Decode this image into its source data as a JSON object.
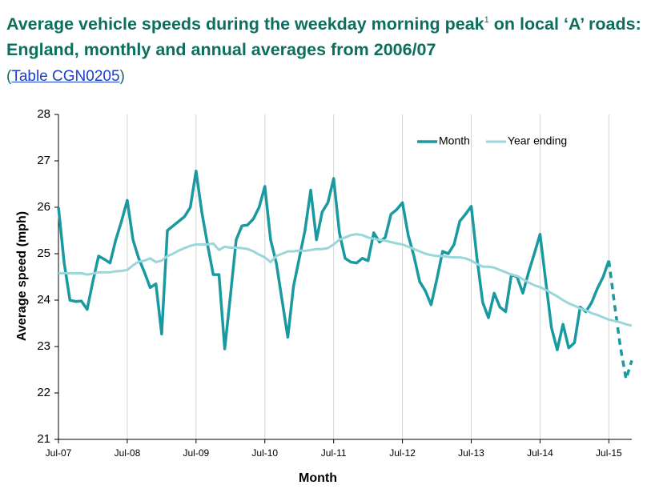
{
  "header": {
    "title": "Average vehicle speeds during the weekday morning peak",
    "title_sup": "1",
    "title_rest": " on local ‘A’ roads: England, monthly and annual averages from 2006/07",
    "link_open": "(",
    "link_text": "Table CGN0205",
    "link_close": ")"
  },
  "chart_data": {
    "type": "line",
    "x_label": "Month",
    "y_label": "Average speed (mph)",
    "categories": [
      "Jul-07",
      null,
      null,
      null,
      null,
      null,
      null,
      null,
      null,
      null,
      null,
      null,
      "Jul-08",
      null,
      null,
      null,
      null,
      null,
      null,
      null,
      null,
      null,
      null,
      null,
      "Jul-09",
      null,
      null,
      null,
      null,
      null,
      null,
      null,
      null,
      null,
      null,
      null,
      "Jul-10",
      null,
      null,
      null,
      null,
      null,
      null,
      null,
      null,
      null,
      null,
      null,
      "Jul-11",
      null,
      null,
      null,
      null,
      null,
      null,
      null,
      null,
      null,
      null,
      null,
      "Jul-12",
      null,
      null,
      null,
      null,
      null,
      null,
      null,
      null,
      null,
      null,
      null,
      "Jul-13",
      null,
      null,
      null,
      null,
      null,
      null,
      null,
      null,
      null,
      null,
      null,
      "Jul-14",
      null,
      null,
      null,
      null,
      null,
      null,
      null,
      null,
      null,
      null,
      null,
      "Jul-15",
      null,
      null,
      null,
      null
    ],
    "ylim": [
      21,
      28
    ],
    "yticks": [
      21,
      22,
      23,
      24,
      25,
      26,
      27,
      28
    ],
    "grid_x": true,
    "legend": "top-right",
    "series": [
      {
        "name": "Month",
        "color": "#1a9aa0",
        "width": 3.5,
        "dashed_from": 96,
        "values": [
          26.0,
          24.8,
          24.0,
          23.97,
          23.98,
          23.8,
          24.4,
          24.95,
          24.88,
          24.8,
          25.3,
          25.7,
          26.15,
          25.3,
          24.9,
          24.6,
          24.27,
          24.35,
          23.27,
          25.5,
          25.6,
          25.7,
          25.8,
          26.0,
          26.78,
          25.9,
          25.2,
          24.55,
          24.55,
          22.95,
          24.1,
          25.3,
          25.6,
          25.62,
          25.75,
          26.0,
          26.45,
          25.3,
          24.8,
          24.0,
          23.2,
          24.3,
          24.9,
          25.5,
          26.37,
          25.3,
          25.9,
          26.1,
          26.62,
          25.45,
          24.9,
          24.82,
          24.8,
          24.9,
          24.85,
          25.45,
          25.25,
          25.35,
          25.85,
          25.95,
          26.1,
          25.4,
          24.95,
          24.4,
          24.2,
          23.9,
          24.45,
          25.05,
          25.0,
          25.2,
          25.7,
          25.85,
          26.02,
          24.9,
          23.95,
          23.62,
          24.15,
          23.85,
          23.75,
          24.55,
          24.5,
          24.15,
          24.6,
          25.0,
          25.42,
          24.4,
          23.4,
          22.93,
          23.48,
          22.97,
          23.08,
          23.85,
          23.75,
          23.95,
          24.25,
          24.5,
          24.85,
          23.9,
          23.0,
          22.3,
          22.7
        ]
      },
      {
        "name": "Year ending",
        "color": "#9ad6da",
        "width": 3,
        "values": [
          24.58,
          24.58,
          24.58,
          24.58,
          24.58,
          24.55,
          24.57,
          24.6,
          24.6,
          24.6,
          24.62,
          24.63,
          24.65,
          24.75,
          24.83,
          24.85,
          24.9,
          24.82,
          24.85,
          24.95,
          25.0,
          25.07,
          25.12,
          25.17,
          25.2,
          25.2,
          25.2,
          25.22,
          25.08,
          25.15,
          25.13,
          25.13,
          25.12,
          25.1,
          25.05,
          24.98,
          24.92,
          24.82,
          24.95,
          25.0,
          25.05,
          25.05,
          25.07,
          25.06,
          25.08,
          25.1,
          25.1,
          25.12,
          25.2,
          25.3,
          25.35,
          25.4,
          25.42,
          25.4,
          25.35,
          25.32,
          25.3,
          25.28,
          25.25,
          25.22,
          25.2,
          25.15,
          25.1,
          25.05,
          25.0,
          24.97,
          24.95,
          24.95,
          24.93,
          24.92,
          24.92,
          24.9,
          24.85,
          24.78,
          24.72,
          24.72,
          24.7,
          24.65,
          24.6,
          24.55,
          24.52,
          24.45,
          24.38,
          24.32,
          24.28,
          24.22,
          24.15,
          24.08,
          24.0,
          23.93,
          23.88,
          23.82,
          23.78,
          23.72,
          23.68,
          23.63,
          23.58,
          23.55,
          23.52,
          23.48,
          23.45
        ]
      }
    ]
  }
}
